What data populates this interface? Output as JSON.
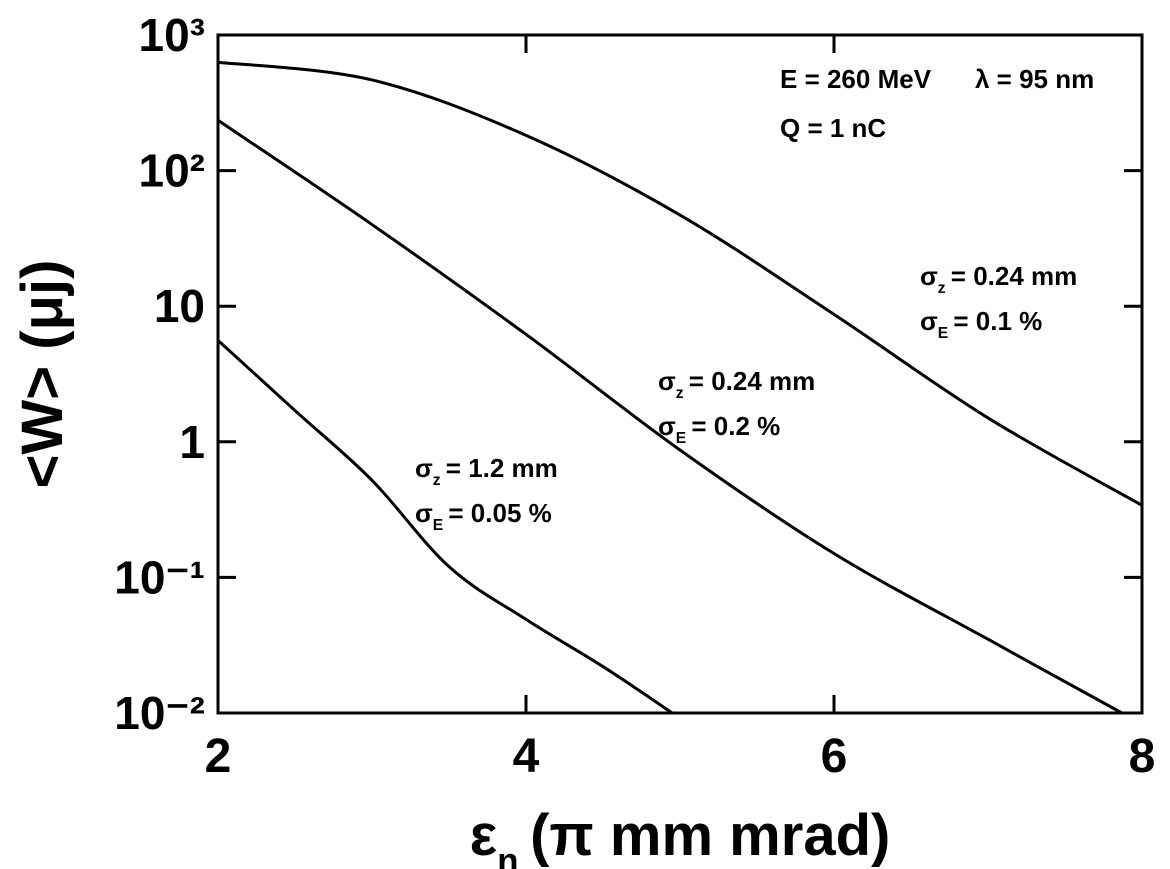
{
  "chart_data": {
    "type": "line",
    "x_label": {
      "symbol": "ε",
      "sub": "n",
      "text": "(π mm mrad)"
    },
    "y_label": "<W> (μj)",
    "log_y": true,
    "xlim": [
      2,
      8
    ],
    "xticks": [
      2,
      4,
      6,
      8
    ],
    "ylim": [
      0.01,
      1000
    ],
    "yticks": [
      {
        "value": 0.01,
        "label": "10⁻²"
      },
      {
        "value": 0.1,
        "label": "10⁻¹"
      },
      1,
      10,
      {
        "value": 100,
        "label": "10²"
      },
      {
        "value": 1000,
        "label": "10³"
      }
    ],
    "color": "#000000",
    "series": [
      {
        "x": [
          2,
          3,
          4,
          5,
          6,
          7,
          8
        ],
        "values": [
          630,
          466,
          182,
          47,
          8.7,
          1.5,
          0.34
        ]
      },
      {
        "x": [
          2,
          3,
          4,
          5,
          6,
          7,
          7.87
        ],
        "values": [
          235,
          40,
          6.2,
          0.87,
          0.15,
          0.035,
          0.01
        ]
      },
      {
        "x": [
          2,
          2.5,
          3,
          3.5,
          4,
          4.5,
          4.95
        ],
        "values": [
          5.6,
          1.7,
          0.52,
          0.12,
          0.049,
          0.022,
          0.01
        ]
      }
    ],
    "annotations": [
      {
        "symbol": "",
        "sub": "",
        "text": "E = 260 MeV"
      },
      {
        "symbol": "",
        "sub": "",
        "text": "λ = 95 nm"
      },
      {
        "symbol": "",
        "sub": "",
        "text": "Q = 1 nC"
      },
      {
        "symbol": "σ",
        "sub": "z",
        "text": "= 0.24 mm"
      },
      {
        "symbol": "σ",
        "sub": "E",
        "text": "= 0.1 %"
      },
      {
        "symbol": "σ",
        "sub": "z",
        "text": "= 0.24 mm"
      },
      {
        "symbol": "σ",
        "sub": "E",
        "text": "= 0.2 %"
      },
      {
        "symbol": "σ",
        "sub": "z",
        "text": "= 1.2 mm"
      },
      {
        "symbol": "σ",
        "sub": "E",
        "text": "= 0.05 %"
      }
    ]
  }
}
